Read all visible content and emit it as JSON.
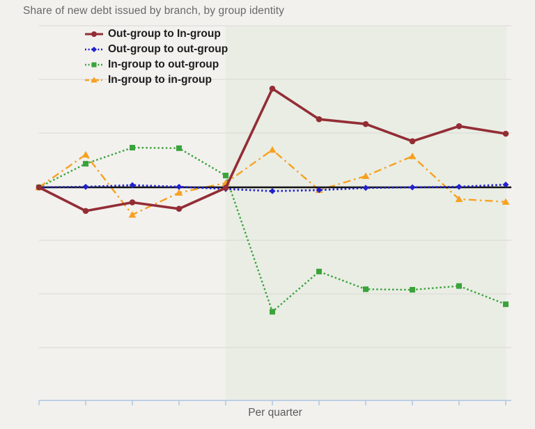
{
  "title": "Share of new debt issued by branch, by group identity",
  "colors": {
    "page_background": "#f2f1ee",
    "shaded_region": "#e9ede4",
    "gridline": "#dddcd7",
    "axis": "#aec6e1",
    "zero_line": "#111111",
    "title_text": "#686868",
    "legend_text": "#1c1c1c"
  },
  "chart_data": {
    "type": "line",
    "title": "Share of new debt issued by branch, by group identity",
    "xlabel": "Per quarter",
    "ylabel": "",
    "x": [
      1,
      2,
      3,
      4,
      5,
      6,
      7,
      8,
      9,
      10,
      11
    ],
    "x_tick_labels_shown": false,
    "y_axis_labels_shown": false,
    "y_units_note": "y-axis is unlabeled; values estimated in gridline units (1 = one horizontal gridline spacing) relative to the black zero line",
    "ylim": [
      -4,
      3
    ],
    "grid": "horizontal",
    "zero_line": true,
    "legend_position": "top-left inside plot",
    "shaded_region": {
      "from_x": 5,
      "to_x": 11,
      "color": "#e9ede4"
    },
    "series": [
      {
        "name": "Out-group to In-group",
        "color": "#932d35",
        "line": "solid",
        "marker": "circle",
        "width": 3.6,
        "values": [
          0,
          -0.44,
          -0.28,
          -0.4,
          -0.01,
          1.84,
          1.27,
          1.18,
          0.86,
          1.14,
          1.0
        ]
      },
      {
        "name": "Out-group to out-group",
        "color": "#2121cd",
        "line": "dotted",
        "marker": "diamond",
        "width": 2.8,
        "values": [
          0,
          0.01,
          0.04,
          0.01,
          -0.03,
          -0.07,
          -0.05,
          -0.01,
          0.0,
          0.01,
          0.05
        ]
      },
      {
        "name": "In-group to out-group",
        "color": "#3aa33a",
        "line": "dotted",
        "marker": "square",
        "width": 2.4,
        "values": [
          0,
          0.44,
          0.74,
          0.73,
          0.22,
          -2.32,
          -1.57,
          -1.9,
          -1.91,
          -1.84,
          -2.18
        ]
      },
      {
        "name": "In-group to in-group",
        "color": "#f8a01f",
        "line": "dashdot",
        "marker": "triangle",
        "width": 2.4,
        "values": [
          0,
          0.61,
          -0.51,
          -0.1,
          0.08,
          0.7,
          -0.05,
          0.21,
          0.58,
          -0.22,
          -0.27
        ]
      }
    ],
    "draw_order": [
      2,
      3,
      -1,
      1,
      0
    ]
  }
}
